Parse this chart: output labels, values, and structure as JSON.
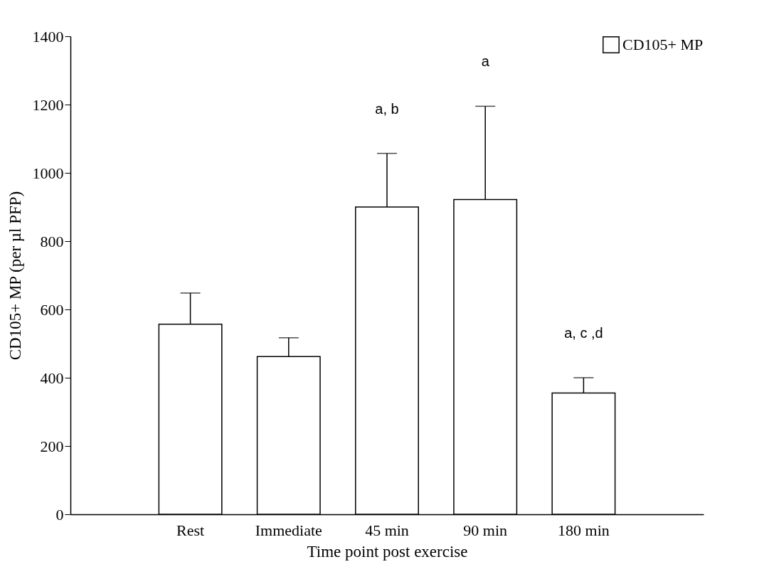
{
  "chart_data": {
    "type": "bar",
    "xlabel": "Time point post exercise",
    "ylabel": "CD105+ MP (per µl PFP)",
    "categories": [
      "Rest",
      "Immediate",
      "45 min",
      "90 min",
      "180 min"
    ],
    "series": [
      {
        "name": "CD105+ MP",
        "color": "#ffffff",
        "values": [
          557,
          462,
          900,
          922,
          355
        ],
        "errors": [
          [
            557,
            648
          ],
          [
            462,
            517
          ],
          [
            900,
            1057
          ],
          [
            922,
            1195
          ],
          [
            355,
            400
          ]
        ]
      }
    ],
    "ylim": [
      0,
      1400
    ],
    "yticks": [
      0,
      200,
      400,
      600,
      800,
      1000,
      1200,
      1400
    ],
    "grid": false,
    "legend": "top right",
    "annotations": [
      {
        "text": "a, b",
        "x": "45 min",
        "y": 1057
      },
      {
        "text": "a",
        "x": "90 min",
        "y": 1195
      },
      {
        "text": "a, c ,d",
        "x": "180 min",
        "y": 400
      }
    ]
  }
}
